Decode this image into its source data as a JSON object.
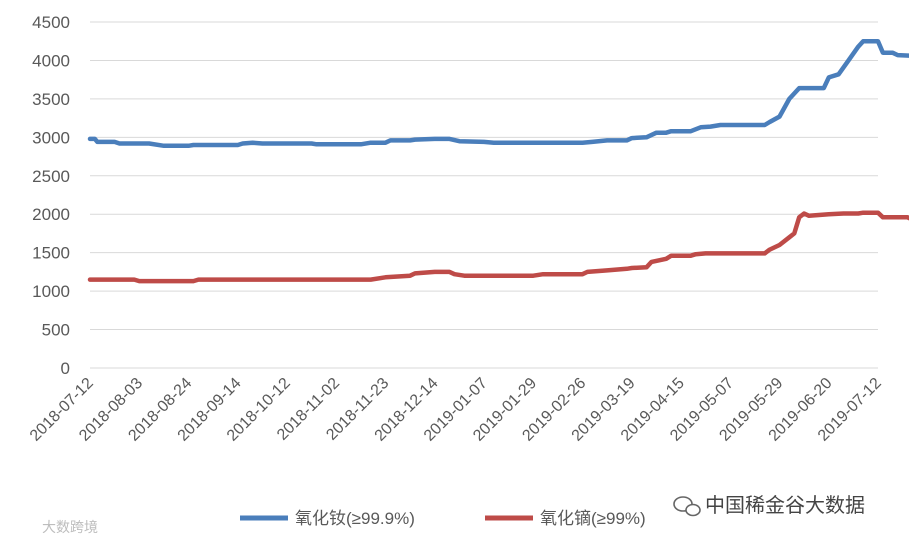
{
  "chart_data": {
    "type": "line",
    "title": "",
    "xlabel": "",
    "ylabel": "",
    "ylim": [
      0,
      4500
    ],
    "yticks": [
      0,
      500,
      1000,
      1500,
      2000,
      2500,
      3000,
      3500,
      4000,
      4500
    ],
    "grid": "horizontal",
    "legend": "bottom",
    "x_tick_labels": [
      "2018-07-12",
      "2018-08-03",
      "2018-08-24",
      "2018-09-14",
      "2018-10-12",
      "2018-11-02",
      "2018-11-23",
      "2018-12-14",
      "2019-01-07",
      "2019-01-29",
      "2019-02-26",
      "2019-03-19",
      "2019-04-15",
      "2019-05-07",
      "2019-05-29",
      "2019-06-20",
      "2019-07-12"
    ],
    "series": [
      {
        "name": "氧化钕(≥99.9%)",
        "color": "#4a7ebb",
        "points": [
          [
            0,
            2980
          ],
          [
            0.1,
            2980
          ],
          [
            0.15,
            2940
          ],
          [
            0.5,
            2940
          ],
          [
            0.6,
            2920
          ],
          [
            1.2,
            2920
          ],
          [
            1.5,
            2890
          ],
          [
            2.0,
            2890
          ],
          [
            2.1,
            2900
          ],
          [
            3.0,
            2900
          ],
          [
            3.1,
            2920
          ],
          [
            3.3,
            2930
          ],
          [
            3.5,
            2920
          ],
          [
            4.5,
            2920
          ],
          [
            4.6,
            2910
          ],
          [
            5.5,
            2910
          ],
          [
            5.7,
            2930
          ],
          [
            6.0,
            2930
          ],
          [
            6.1,
            2960
          ],
          [
            6.5,
            2960
          ],
          [
            6.6,
            2970
          ],
          [
            7.0,
            2980
          ],
          [
            7.3,
            2980
          ],
          [
            7.5,
            2950
          ],
          [
            8.0,
            2940
          ],
          [
            8.2,
            2930
          ],
          [
            9.0,
            2930
          ],
          [
            9.5,
            2930
          ],
          [
            10.0,
            2930
          ],
          [
            10.2,
            2940
          ],
          [
            10.5,
            2960
          ],
          [
            10.9,
            2960
          ],
          [
            11.0,
            2990
          ],
          [
            11.3,
            3000
          ],
          [
            11.5,
            3060
          ],
          [
            11.7,
            3060
          ],
          [
            11.8,
            3080
          ],
          [
            12.2,
            3080
          ],
          [
            12.4,
            3130
          ],
          [
            12.6,
            3140
          ],
          [
            12.8,
            3160
          ],
          [
            13.7,
            3160
          ],
          [
            13.8,
            3200
          ],
          [
            14.0,
            3270
          ],
          [
            14.2,
            3500
          ],
          [
            14.4,
            3640
          ],
          [
            14.6,
            3640
          ],
          [
            14.9,
            3640
          ],
          [
            15.0,
            3780
          ],
          [
            15.2,
            3820
          ],
          [
            15.4,
            4000
          ],
          [
            15.6,
            4180
          ],
          [
            15.7,
            4250
          ],
          [
            16.0,
            4250
          ],
          [
            16.1,
            4100
          ],
          [
            16.3,
            4100
          ],
          [
            16.4,
            4070
          ],
          [
            16.7,
            4060
          ],
          [
            16.8,
            4040
          ],
          [
            17.0,
            4040
          ]
        ]
      },
      {
        "name": "氧化镝(≥99%)",
        "color": "#be4b48",
        "points": [
          [
            0,
            1150
          ],
          [
            0.9,
            1150
          ],
          [
            1.0,
            1130
          ],
          [
            2.1,
            1130
          ],
          [
            2.2,
            1150
          ],
          [
            5.7,
            1150
          ],
          [
            6.0,
            1180
          ],
          [
            6.5,
            1200
          ],
          [
            6.6,
            1230
          ],
          [
            7.0,
            1250
          ],
          [
            7.3,
            1250
          ],
          [
            7.4,
            1220
          ],
          [
            7.6,
            1200
          ],
          [
            9.0,
            1200
          ],
          [
            9.2,
            1220
          ],
          [
            10.0,
            1220
          ],
          [
            10.1,
            1250
          ],
          [
            10.5,
            1270
          ],
          [
            10.9,
            1290
          ],
          [
            11.0,
            1300
          ],
          [
            11.3,
            1310
          ],
          [
            11.4,
            1380
          ],
          [
            11.7,
            1420
          ],
          [
            11.8,
            1460
          ],
          [
            12.2,
            1460
          ],
          [
            12.3,
            1480
          ],
          [
            12.5,
            1490
          ],
          [
            13.7,
            1490
          ],
          [
            13.8,
            1540
          ],
          [
            14.0,
            1600
          ],
          [
            14.2,
            1700
          ],
          [
            14.3,
            1750
          ],
          [
            14.4,
            1960
          ],
          [
            14.5,
            2010
          ],
          [
            14.6,
            1980
          ],
          [
            14.8,
            1990
          ],
          [
            15.0,
            2000
          ],
          [
            15.3,
            2010
          ],
          [
            15.6,
            2010
          ],
          [
            15.7,
            2020
          ],
          [
            16.0,
            2020
          ],
          [
            16.1,
            1960
          ],
          [
            16.4,
            1960
          ],
          [
            16.6,
            1960
          ],
          [
            16.7,
            1930
          ],
          [
            17.0,
            1920
          ]
        ]
      }
    ]
  },
  "watermark": {
    "text": "中国稀金谷大数据",
    "icon": "wechat-icon"
  },
  "watermark2": {
    "text": "大数跨境"
  }
}
